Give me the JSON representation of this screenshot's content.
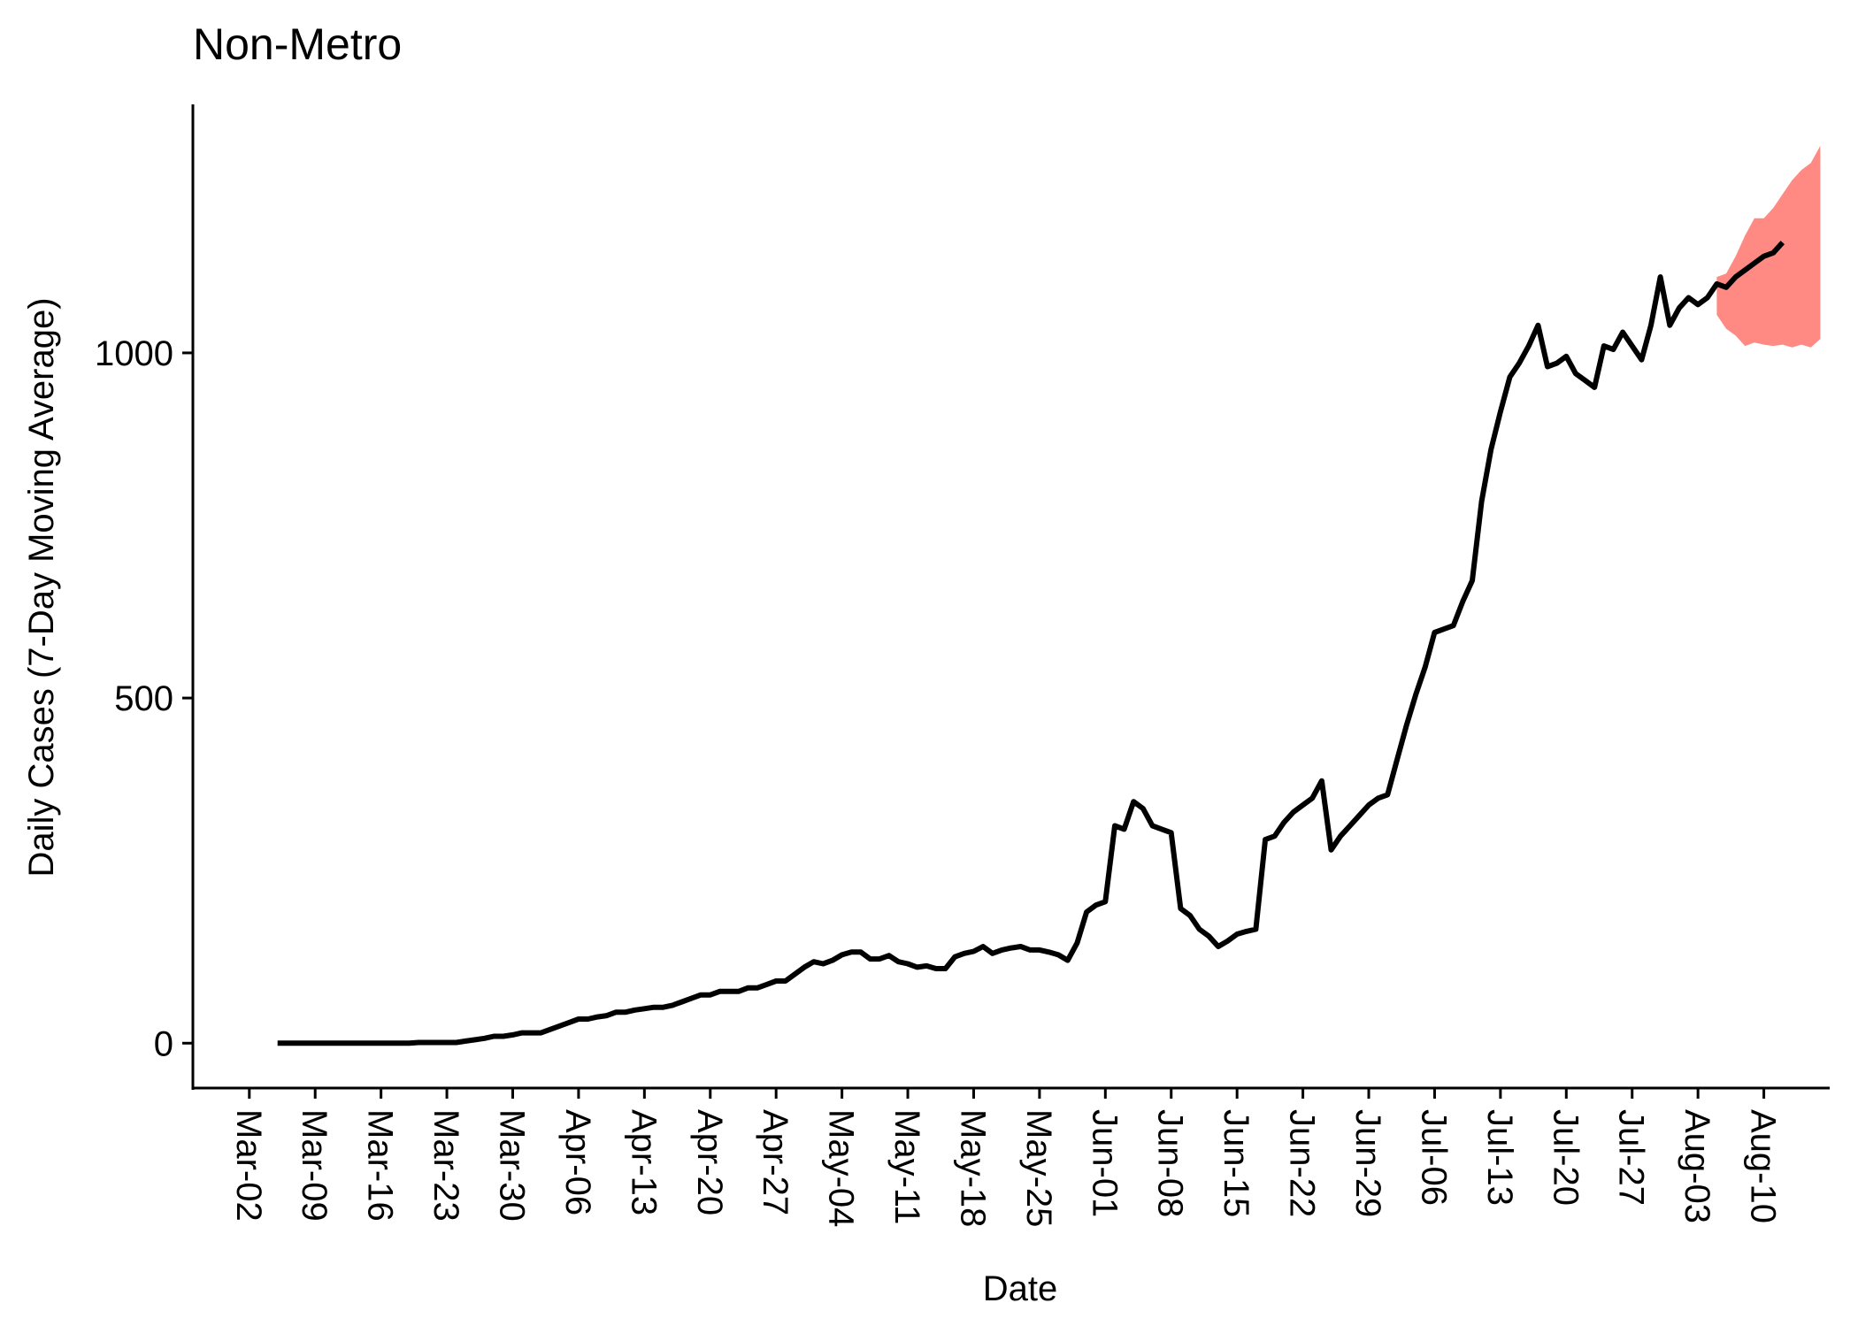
{
  "chart_data": {
    "type": "line",
    "title": "Non-Metro",
    "xlabel": "Date",
    "ylabel": "Daily Cases (7-Day Moving Average)",
    "grid": false,
    "legend": "none",
    "ylim": [
      -65,
      1360
    ],
    "y_ticks": [
      0,
      500,
      1000
    ],
    "x_tick_labels": [
      "Mar-02",
      "Mar-09",
      "Mar-16",
      "Mar-23",
      "Mar-30",
      "Apr-06",
      "Apr-13",
      "Apr-20",
      "Apr-27",
      "May-04",
      "May-11",
      "May-18",
      "May-25",
      "Jun-01",
      "Jun-08",
      "Jun-15",
      "Jun-22",
      "Jun-29",
      "Jul-06",
      "Jul-13",
      "Jul-20",
      "Jul-27",
      "Aug-03",
      "Aug-10"
    ],
    "xlim": [
      "2020-02-25",
      "2020-08-17"
    ],
    "series": [
      {
        "color": "#000000",
        "start_date": "2020-03-05",
        "values": [
          0,
          0,
          0,
          0,
          0,
          0,
          0,
          0,
          0,
          0,
          0,
          0,
          0,
          0,
          0,
          1,
          1,
          1,
          1,
          1,
          3,
          5,
          7,
          10,
          10,
          12,
          15,
          15,
          15,
          20,
          25,
          30,
          35,
          35,
          38,
          40,
          45,
          45,
          48,
          50,
          52,
          52,
          55,
          60,
          65,
          70,
          70,
          75,
          75,
          75,
          80,
          80,
          85,
          90,
          90,
          100,
          110,
          118,
          115,
          120,
          128,
          132,
          132,
          122,
          122,
          127,
          118,
          115,
          110,
          112,
          108,
          108,
          125,
          130,
          133,
          140,
          130,
          135,
          138,
          140,
          135,
          135,
          132,
          128,
          120,
          145,
          190,
          200,
          205,
          315,
          310,
          350,
          340,
          315,
          310,
          305,
          195,
          185,
          165,
          155,
          140,
          148,
          158,
          162,
          165,
          295,
          300,
          320,
          335,
          345,
          355,
          380,
          280,
          300,
          315,
          330,
          345,
          355,
          360,
          410,
          460,
          505,
          545,
          595,
          600,
          605,
          640,
          670,
          785,
          860,
          915,
          965,
          985,
          1010,
          1040,
          980,
          985,
          995,
          970,
          960,
          950,
          1010,
          1005,
          1030,
          1010,
          990,
          1040,
          1110,
          1040,
          1065,
          1080,
          1070,
          1080,
          1100,
          1095,
          1110,
          1120,
          1130,
          1140,
          1145,
          1160
        ]
      }
    ],
    "band": {
      "color": "#ff8a84",
      "start_date": "2020-08-05",
      "upper": [
        1110,
        1115,
        1140,
        1170,
        1195,
        1195,
        1210,
        1230,
        1250,
        1265,
        1275,
        1300
      ],
      "lower": [
        1055,
        1035,
        1025,
        1010,
        1015,
        1012,
        1010,
        1012,
        1008,
        1012,
        1008,
        1020
      ]
    }
  }
}
